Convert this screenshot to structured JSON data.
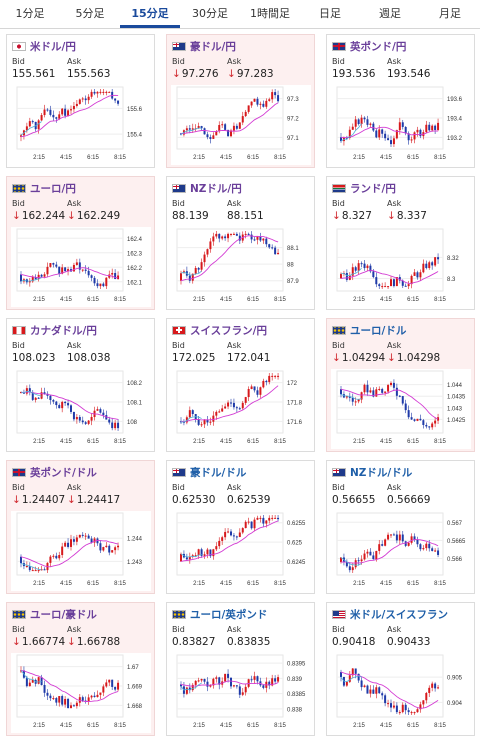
{
  "tabs": [
    {
      "label": "1分足",
      "active": false
    },
    {
      "label": "5分足",
      "active": false
    },
    {
      "label": "15分足",
      "active": true
    },
    {
      "label": "30分足",
      "active": false
    },
    {
      "label": "1時間足",
      "active": false
    },
    {
      "label": "日足",
      "active": false
    },
    {
      "label": "週足",
      "active": false
    },
    {
      "label": "月足",
      "active": false
    }
  ],
  "labels": {
    "bid": "Bid",
    "ask": "Ask"
  },
  "x_ticks": [
    "2:15",
    "4:15",
    "6:15",
    "8:15"
  ],
  "colors": {
    "up": "#d7191c",
    "down": "#1f3aa8",
    "ma": "#d33bd3",
    "ma2": "#4fb0d8",
    "accent": "#1a4a9c"
  },
  "pairs": [
    {
      "title": "米ドル/円",
      "flag": "jp",
      "bid": "155.561",
      "ask": "155.563",
      "dir": "flat",
      "bg": "flat",
      "chart_data": {
        "type": "candlestick",
        "yticks": [
          "155.6",
          "155.4"
        ],
        "ylim": [
          155.3,
          155.75
        ],
        "seed": 1,
        "start": 155.38,
        "end": 155.55
      }
    },
    {
      "title": "豪ドル/円",
      "flag": "au",
      "bid": "97.276",
      "ask": "97.283",
      "dir": "down",
      "bg": "down",
      "chart_data": {
        "type": "candlestick",
        "yticks": [
          "97.3",
          "97.2",
          "97.1"
        ],
        "ylim": [
          97.05,
          97.35
        ],
        "seed": 2,
        "start": 97.12,
        "end": 97.27
      }
    },
    {
      "title": "英ポンド/円",
      "flag": "uk",
      "bid": "193.536",
      "ask": "193.546",
      "dir": "flat",
      "bg": "flat",
      "chart_data": {
        "type": "candlestick",
        "yticks": [
          "193.6",
          "193.4",
          "193.2"
        ],
        "ylim": [
          193.1,
          193.7
        ],
        "seed": 3,
        "start": 193.2,
        "end": 193.5
      }
    },
    {
      "title": "ユーロ/円",
      "flag": "eu",
      "bid": "162.244",
      "ask": "162.249",
      "dir": "down",
      "bg": "down",
      "chart_data": {
        "type": "candlestick",
        "yticks": [
          "162.4",
          "162.3",
          "162.2",
          "162.1"
        ],
        "ylim": [
          162.05,
          162.45
        ],
        "seed": 4,
        "start": 162.15,
        "end": 162.24
      }
    },
    {
      "title": "NZドル/円",
      "flag": "nz",
      "bid": "88.139",
      "ask": "88.151",
      "dir": "flat",
      "bg": "flat",
      "chart_data": {
        "type": "candlestick",
        "yticks": [
          "88.1",
          "88",
          "87.9"
        ],
        "ylim": [
          87.85,
          88.2
        ],
        "seed": 5,
        "start": 87.9,
        "end": 88.14
      }
    },
    {
      "title": "ランド/円",
      "flag": "za",
      "bid": "8.327",
      "ask": "8.337",
      "dir": "down",
      "bg": "flat",
      "chart_data": {
        "type": "candlestick",
        "yticks": [
          "8.32",
          "8.3"
        ],
        "ylim": [
          8.29,
          8.345
        ],
        "seed": 6,
        "start": 8.3,
        "end": 8.33
      }
    },
    {
      "title": "カナダドル/円",
      "flag": "ca",
      "bid": "108.023",
      "ask": "108.038",
      "dir": "flat",
      "bg": "flat",
      "chart_data": {
        "type": "candlestick",
        "yticks": [
          "108.2",
          "108.1",
          "108"
        ],
        "ylim": [
          107.95,
          108.25
        ],
        "seed": 7,
        "start": 108.15,
        "end": 108.03
      }
    },
    {
      "title": "スイスフラン/円",
      "flag": "ch",
      "bid": "172.025",
      "ask": "172.041",
      "dir": "flat",
      "bg": "flat",
      "chart_data": {
        "type": "candlestick",
        "yticks": [
          "172",
          "171.8",
          "171.6"
        ],
        "ylim": [
          171.5,
          172.1
        ],
        "seed": 8,
        "start": 171.6,
        "end": 172.02
      }
    },
    {
      "title": "ユーロ/ドル",
      "flag": "eu",
      "bid": "1.04294",
      "ask": "1.04298",
      "dir": "down",
      "bg": "down",
      "chart_data": {
        "type": "candlestick",
        "yticks": [
          "1.044",
          "1.0435",
          "1.043",
          "1.0425"
        ],
        "ylim": [
          1.042,
          1.0445
        ],
        "seed": 9,
        "start": 1.0438,
        "end": 1.0429
      }
    },
    {
      "title": "英ポンド/ドル",
      "flag": "uk",
      "bid": "1.24407",
      "ask": "1.24417",
      "dir": "down",
      "bg": "down",
      "chart_data": {
        "type": "candlestick",
        "yticks": [
          "1.244",
          "1.243"
        ],
        "ylim": [
          1.2425,
          1.245
        ],
        "seed": 10,
        "start": 1.2432,
        "end": 1.2441
      }
    },
    {
      "title": "豪ドル/ドル",
      "flag": "au",
      "bid": "0.62530",
      "ask": "0.62539",
      "dir": "flat",
      "bg": "flat",
      "chart_data": {
        "type": "candlestick",
        "yticks": [
          "0.6255",
          "0.625",
          "0.6245"
        ],
        "ylim": [
          0.6242,
          0.6257
        ],
        "seed": 11,
        "start": 0.6245,
        "end": 0.6253
      }
    },
    {
      "title": "NZドル/ドル",
      "flag": "nz",
      "bid": "0.56655",
      "ask": "0.56669",
      "dir": "flat",
      "bg": "flat",
      "chart_data": {
        "type": "candlestick",
        "yticks": [
          "0.567",
          "0.5665",
          "0.566"
        ],
        "ylim": [
          0.5656,
          0.5672
        ],
        "seed": 12,
        "start": 0.5659,
        "end": 0.5666
      }
    },
    {
      "title": "ユーロ/豪ドル",
      "flag": "eu",
      "bid": "1.66774",
      "ask": "1.66788",
      "dir": "down",
      "bg": "down",
      "chart_data": {
        "type": "candlestick",
        "yticks": [
          "1.67",
          "1.669",
          "1.668"
        ],
        "ylim": [
          1.6675,
          1.6705
        ],
        "seed": 13,
        "start": 1.6698,
        "end": 1.6678
      }
    },
    {
      "title": "ユーロ/英ポンド",
      "flag": "eu",
      "bid": "0.83827",
      "ask": "0.83835",
      "dir": "flat",
      "bg": "flat",
      "chart_data": {
        "type": "candlestick",
        "yticks": [
          "0.8395",
          "0.839",
          "0.8385",
          "0.838"
        ],
        "ylim": [
          0.8378,
          0.8397
        ],
        "seed": 14,
        "start": 0.8388,
        "end": 0.8383
      }
    },
    {
      "title": "米ドル/スイスフラン",
      "flag": "us",
      "bid": "0.90418",
      "ask": "0.90433",
      "dir": "flat",
      "bg": "flat",
      "chart_data": {
        "type": "candlestick",
        "yticks": [
          "0.905",
          "0.904"
        ],
        "ylim": [
          0.9035,
          0.9058
        ],
        "seed": 15,
        "start": 0.9052,
        "end": 0.9042
      }
    }
  ]
}
